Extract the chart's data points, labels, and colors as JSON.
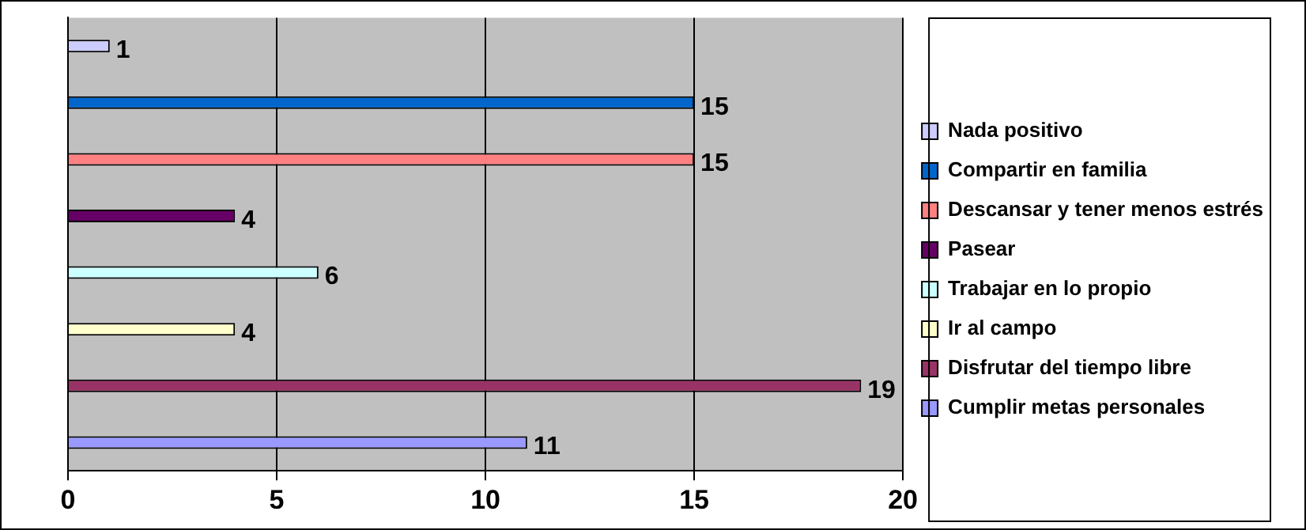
{
  "chart_data": {
    "type": "bar",
    "orientation": "horizontal",
    "categories": [
      null,
      null,
      null,
      null,
      null,
      null,
      null,
      null
    ],
    "series": [
      {
        "name": "Nada positivo",
        "color": "#ccccff",
        "values": [
          1,
          null,
          null,
          null,
          null,
          null,
          null,
          null
        ]
      },
      {
        "name": "Compartir en familia",
        "color": "#0066cc",
        "values": [
          null,
          15,
          null,
          null,
          null,
          null,
          null,
          null
        ]
      },
      {
        "name": "Descansar y tener menos estrés",
        "color": "#ff8080",
        "values": [
          null,
          null,
          15,
          null,
          null,
          null,
          null,
          null
        ]
      },
      {
        "name": "Pasear",
        "color": "#660066",
        "values": [
          null,
          null,
          null,
          4,
          null,
          null,
          null,
          null
        ]
      },
      {
        "name": "Trabajar en lo propio",
        "color": "#ccffff",
        "values": [
          null,
          null,
          null,
          null,
          6,
          null,
          null,
          null
        ]
      },
      {
        "name": "Ir al campo",
        "color": "#ffffcc",
        "values": [
          null,
          null,
          null,
          null,
          null,
          4,
          null,
          null
        ]
      },
      {
        "name": "Disfrutar del tiempo libre",
        "color": "#993366",
        "values": [
          null,
          null,
          null,
          null,
          null,
          null,
          19,
          null
        ]
      },
      {
        "name": "Cumplir metas personales",
        "color": "#9999ff",
        "values": [
          null,
          null,
          null,
          null,
          null,
          null,
          null,
          11
        ]
      }
    ],
    "xlim": [
      0,
      20
    ],
    "xticks": [
      0,
      5,
      10,
      15,
      20
    ],
    "grid": "x",
    "legend": "right",
    "data_labels": true
  }
}
